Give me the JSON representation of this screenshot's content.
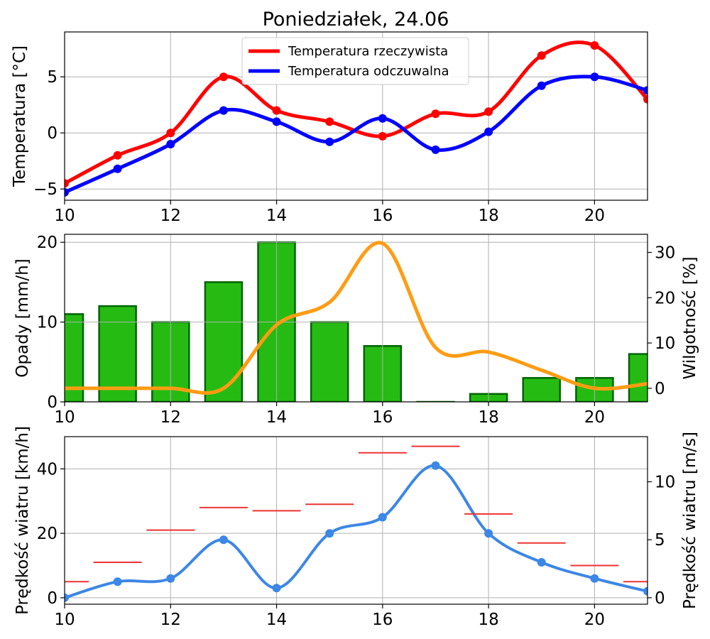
{
  "chart_data": [
    {
      "type": "line",
      "title": "Poniedziałek, 24.06",
      "xlabel": "",
      "ylabel": "Temperatura [°C]",
      "xlim": [
        10,
        21
      ],
      "ylim": [
        -6,
        9
      ],
      "x_ticks": [
        "10",
        "12",
        "14",
        "16",
        "18",
        "20"
      ],
      "y_ticks": [
        "−5",
        "0",
        "5"
      ],
      "grid": true,
      "legend": "top-center",
      "x": [
        10,
        11,
        12,
        13,
        14,
        15,
        16,
        17,
        18,
        19,
        20,
        21
      ],
      "series": [
        {
          "name": "Temperatura rzeczywista",
          "color": "#ff0000",
          "values": [
            -4.5,
            -2,
            0,
            5,
            2,
            1,
            -0.3,
            1.7,
            1.9,
            6.9,
            7.8,
            3.0
          ]
        },
        {
          "name": "Temperatura odczuwalna",
          "color": "#0000ff",
          "values": [
            -5.3,
            -3.2,
            -1,
            2,
            1,
            -0.8,
            1.3,
            -1.5,
            0.1,
            4.2,
            5,
            3.8
          ]
        }
      ]
    },
    {
      "type": "bar",
      "xlabel": "",
      "ylabel": "Opady [mm/h]",
      "ylabel_right": "Wilgotność [%]",
      "xlim": [
        10,
        21
      ],
      "ylim": [
        0,
        21
      ],
      "ylim_right": [
        -3,
        34
      ],
      "x_ticks": [
        "10",
        "12",
        "14",
        "16",
        "18",
        "20"
      ],
      "y_ticks": [
        "0",
        "10",
        "20"
      ],
      "y_ticks_right": [
        "0",
        "10",
        "20",
        "30"
      ],
      "grid": true,
      "x": [
        10,
        11,
        12,
        13,
        14,
        15,
        16,
        17,
        18,
        19,
        20,
        21
      ],
      "series": [
        {
          "axis": "left",
          "kind": "bar",
          "color": "#26bb13",
          "edge": "#006400",
          "values": [
            11,
            12,
            10,
            15,
            20,
            10,
            7,
            0,
            1,
            3,
            3,
            6
          ]
        },
        {
          "axis": "right",
          "kind": "line",
          "color": "#ff9c13",
          "values": [
            0,
            0,
            0,
            0,
            14,
            19,
            32,
            9,
            8,
            4,
            0,
            1
          ]
        }
      ]
    },
    {
      "type": "line",
      "xlabel": "",
      "ylabel": "Prędkość wiatru [km/h]",
      "ylabel_right": "Prędkość wiatru [m/s]",
      "xlim": [
        10,
        21
      ],
      "ylim": [
        -2,
        50
      ],
      "ylim_right": [
        -0.56,
        13.89
      ],
      "x_ticks": [
        "10",
        "12",
        "14",
        "16",
        "18",
        "20"
      ],
      "y_ticks": [
        "0",
        "20",
        "40"
      ],
      "y_ticks_right": [
        "0",
        "5",
        "10"
      ],
      "grid": true,
      "x": [
        10,
        11,
        12,
        13,
        14,
        15,
        16,
        17,
        18,
        19,
        20,
        21
      ],
      "series": [
        {
          "axis": "left",
          "kind": "line",
          "color": "#3d87e6",
          "values": [
            0,
            5,
            6,
            18,
            3,
            20,
            25,
            41,
            20,
            11,
            6,
            2
          ]
        },
        {
          "axis": "left",
          "kind": "hsegments",
          "color": "#ee3333",
          "values": [
            5,
            11,
            21,
            28,
            27,
            29,
            45,
            47,
            26,
            17,
            10,
            5
          ]
        }
      ]
    }
  ]
}
